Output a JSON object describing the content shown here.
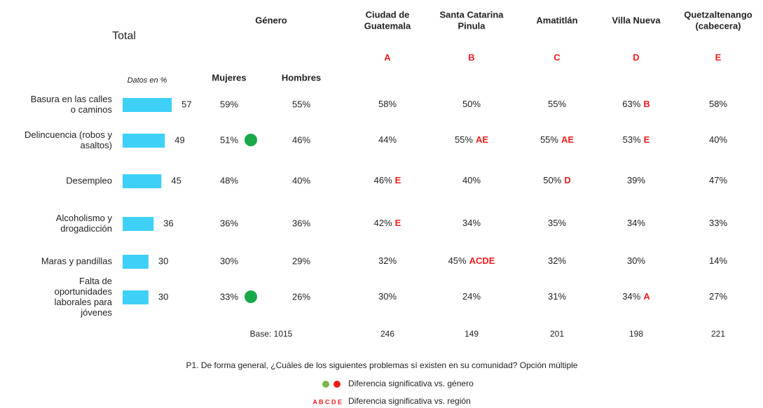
{
  "title": "Total",
  "unit_note": "Datos en %",
  "gender_header": "Género",
  "gender_columns": [
    "Mujeres",
    "Hombres"
  ],
  "bar_color": "#3fd0f7",
  "regions": [
    {
      "name": [
        "Ciudad de",
        "Guatemala"
      ],
      "letter": "A"
    },
    {
      "name": [
        "Santa Catarina",
        "Pinula"
      ],
      "letter": "B"
    },
    {
      "name": [
        "Amatitlán"
      ],
      "letter": "C"
    },
    {
      "name": [
        "Villa Nueva"
      ],
      "letter": "D"
    },
    {
      "name": [
        "Quetzaltenango",
        "(cabecera)"
      ],
      "letter": "E"
    }
  ],
  "rows": [
    {
      "label": [
        "Basura en las calles",
        "o caminos"
      ],
      "total": 57,
      "mujeres": "59%",
      "hombres": "55%",
      "cells": [
        {
          "value": "58%"
        },
        {
          "value": "50%"
        },
        {
          "value": "55%"
        },
        {
          "value": "63%",
          "sig": "B"
        },
        {
          "value": "58%"
        }
      ]
    },
    {
      "label": [
        "Delincuencia (robos y",
        "asaltos)"
      ],
      "total": 49,
      "mujeres": "51%",
      "mujeres_dot": "#1aa84a",
      "hombres": "46%",
      "cells": [
        {
          "value": "44%"
        },
        {
          "value": "55%",
          "sig": "AE"
        },
        {
          "value": "55%",
          "sig": "AE"
        },
        {
          "value": "53%",
          "sig": "E"
        },
        {
          "value": "40%"
        }
      ]
    },
    {
      "label": [
        "Desempleo"
      ],
      "total": 45,
      "mujeres": "48%",
      "hombres": "40%",
      "cells": [
        {
          "value": "46%",
          "sig": "E"
        },
        {
          "value": "40%"
        },
        {
          "value": "50%",
          "sig": "D"
        },
        {
          "value": "39%"
        },
        {
          "value": "47%"
        }
      ]
    },
    {
      "label": [
        "Alcoholismo y",
        "drogadicción"
      ],
      "total": 36,
      "mujeres": "36%",
      "hombres": "36%",
      "cells": [
        {
          "value": "42%",
          "sig": "E"
        },
        {
          "value": "34%"
        },
        {
          "value": "35%"
        },
        {
          "value": "34%"
        },
        {
          "value": "33%"
        }
      ]
    },
    {
      "label": [
        "Maras y pandillas"
      ],
      "total": 30,
      "mujeres": "30%",
      "hombres": "29%",
      "cells": [
        {
          "value": "32%"
        },
        {
          "value": "45%",
          "sig": "ACDE"
        },
        {
          "value": "32%"
        },
        {
          "value": "30%"
        },
        {
          "value": "14%"
        }
      ]
    },
    {
      "label": [
        "Falta de",
        "oportunidades",
        "laborales para",
        "jóvenes"
      ],
      "total": 30,
      "mujeres": "33%",
      "mujeres_dot": "#1aa84a",
      "hombres": "26%",
      "cells": [
        {
          "value": "30%"
        },
        {
          "value": "24%"
        },
        {
          "value": "31%"
        },
        {
          "value": "34%",
          "sig": "A"
        },
        {
          "value": "27%"
        }
      ]
    }
  ],
  "base": {
    "label": "Base: 1015",
    "regions": [
      246,
      149,
      201,
      198,
      221
    ]
  },
  "question": "P1. De forma general, ¿Cuáles de los siguientes problemas sí existen en su comunidad? Opción múltiple",
  "legend": {
    "gender_dots": [
      "#7ab648",
      "#ee1c1c"
    ],
    "gender_text": "Diferencia significativa vs. género",
    "region_letters": "A B C D E",
    "region_text": "Diferencia significativa vs. región"
  },
  "sig_color": "#ee1c1c"
}
